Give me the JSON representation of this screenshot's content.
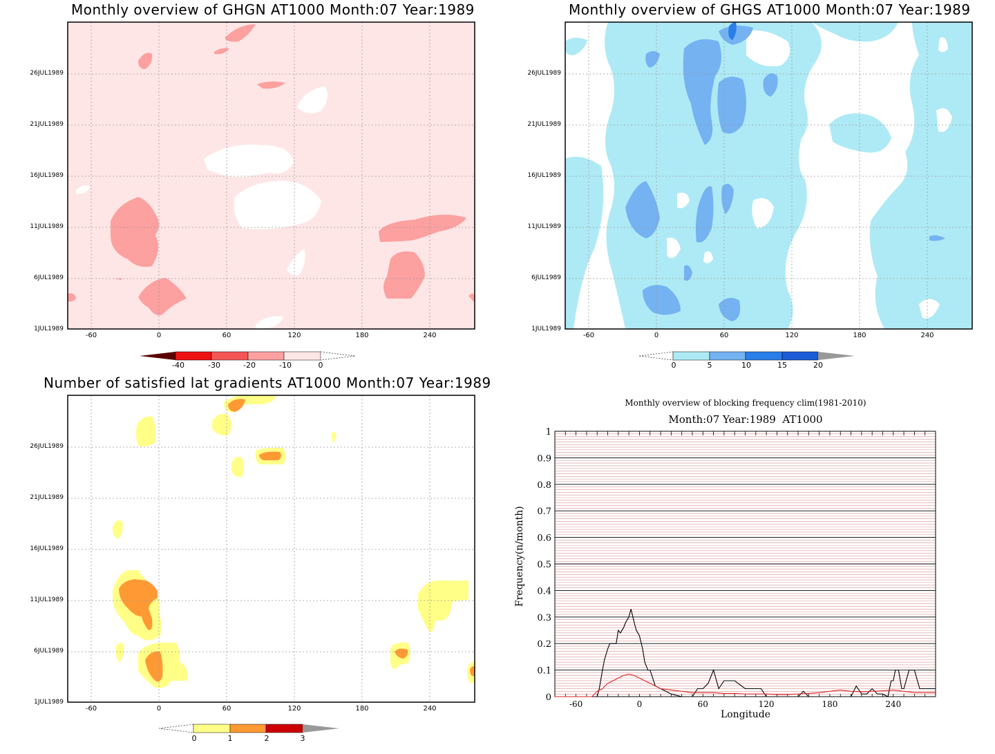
{
  "colors": {
    "ghgn": [
      "#f87d7d00",
      "#fca0a0",
      "#ffe6e6"
    ],
    "ghgs": [
      "#aeeaf5",
      "#74b2f2",
      "#2a7ee8",
      "#1c5cd6"
    ],
    "lat": [
      "#ffff88",
      "#ff9933",
      "#cc0000"
    ],
    "line_black": "#000000",
    "line_red": "#e02020",
    "grid_red": "#d89090"
  },
  "panels": [
    {
      "id": "ghgn",
      "title": "Monthly overview of GHGN AT1000 Month:07 Year:1989",
      "y_ticks": [
        "26JUL1989",
        "21JUL1989",
        "16JUL1989",
        "11JUL1989",
        "6JUL1989",
        "1JUL1989"
      ],
      "x_ticks": [
        "-60",
        "0",
        "60",
        "120",
        "180",
        "240"
      ],
      "colorbar": {
        "labels": [
          "-40",
          "-30",
          "-20",
          "-10",
          "0"
        ]
      }
    },
    {
      "id": "ghgs",
      "title": "Monthly overview of GHGS AT1000 Month:07 Year:1989",
      "y_ticks": [
        "26JUL1989",
        "21JUL1989",
        "16JUL1989",
        "11JUL1989",
        "6JUL1989",
        "1JUL1989"
      ],
      "x_ticks": [
        "-60",
        "0",
        "60",
        "120",
        "180",
        "240"
      ],
      "colorbar": {
        "labels": [
          "0",
          "5",
          "10",
          "15",
          "20"
        ]
      }
    },
    {
      "id": "lat",
      "title": "Number of satisfied lat gradients AT1000 Month:07 Year:1989",
      "y_ticks": [
        "26JUL1989",
        "21JUL1989",
        "16JUL1989",
        "11JUL1989",
        "6JUL1989",
        "1JUL1989"
      ],
      "x_ticks": [
        "-60",
        "0",
        "60",
        "120",
        "180",
        "240"
      ],
      "colorbar": {
        "labels": [
          "0",
          "1",
          "2",
          "3"
        ]
      }
    }
  ],
  "chart_data": [
    {
      "type": "heatmap",
      "title": "Monthly overview of GHGN AT1000 Month:07 Year:1989",
      "x_range": [
        -80,
        280
      ],
      "y_range": [
        "1JUL1989",
        "31JUL1989"
      ],
      "levels": [
        -40,
        -30,
        -20,
        -10,
        0
      ]
    },
    {
      "type": "heatmap",
      "title": "Monthly overview of GHGS AT1000 Month:07 Year:1989",
      "x_range": [
        -80,
        280
      ],
      "y_range": [
        "1JUL1989",
        "31JUL1989"
      ],
      "levels": [
        0,
        5,
        10,
        15,
        20
      ]
    },
    {
      "type": "heatmap",
      "title": "Number of satisfied lat gradients AT1000 Month:07 Year:1989",
      "x_range": [
        -80,
        280
      ],
      "y_range": [
        "1JUL1989",
        "31JUL1989"
      ],
      "levels": [
        0,
        1,
        2,
        3
      ]
    },
    {
      "type": "line",
      "title": "Monthly overview of blocking frequency clim(1981-2010)",
      "subtitle": "Month:07 Year:1989  AT1000",
      "xlabel": "Longitude",
      "ylabel": "Frequency(n/month)",
      "x_ticks": [
        "-60",
        "0",
        "60",
        "120",
        "180",
        "240"
      ],
      "y_ticks": [
        "0",
        "0.1",
        "0.2",
        "0.3",
        "0.4",
        "0.5",
        "0.6",
        "0.7",
        "0.8",
        "0.9",
        "1"
      ],
      "xlim": [
        -80,
        280
      ],
      "ylim": [
        0,
        1
      ],
      "grid": true,
      "series": [
        {
          "color": "#000000",
          "x": [
            -80,
            -60,
            -50,
            -45,
            -40,
            -38,
            -35,
            -33,
            -30,
            -28,
            -25,
            -22,
            -20,
            -18,
            -15,
            -13,
            -10,
            -8,
            -5,
            -3,
            0,
            3,
            5,
            8,
            10,
            15,
            20,
            25,
            30,
            40,
            50,
            55,
            60,
            65,
            70,
            75,
            80,
            85,
            90,
            100,
            110,
            115,
            120,
            125,
            130,
            135,
            140,
            150,
            155,
            160,
            170,
            180,
            190,
            200,
            205,
            210,
            212,
            215,
            220,
            225,
            230,
            235,
            238,
            240,
            242,
            245,
            248,
            250,
            255,
            260,
            265,
            270,
            280
          ],
          "y": [
            0,
            0,
            0,
            0,
            0,
            0.03,
            0.1,
            0.14,
            0.18,
            0.2,
            0.2,
            0.2,
            0.25,
            0.24,
            0.26,
            0.28,
            0.3,
            0.33,
            0.28,
            0.25,
            0.23,
            0.18,
            0.13,
            0.1,
            0.1,
            0.04,
            0.03,
            0.02,
            0.01,
            0,
            0,
            0.03,
            0.03,
            0.05,
            0.1,
            0.03,
            0.06,
            0.06,
            0.06,
            0.03,
            0.03,
            0.03,
            0,
            0,
            0,
            0,
            0,
            0,
            0.02,
            0,
            0,
            0,
            0,
            0,
            0.04,
            0.01,
            0.01,
            0.01,
            0.03,
            0.01,
            0.01,
            0,
            0.06,
            0.06,
            0.1,
            0.1,
            0.03,
            0.03,
            0.1,
            0.1,
            0.03,
            0.03,
            0.03
          ]
        },
        {
          "color": "#e02020",
          "x": [
            -80,
            -50,
            -45,
            -40,
            -35,
            -30,
            -25,
            -20,
            -15,
            -10,
            -5,
            0,
            5,
            10,
            15,
            20,
            30,
            40,
            50,
            60,
            70,
            80,
            90,
            100,
            110,
            120,
            130,
            140,
            150,
            160,
            170,
            180,
            190,
            200,
            210,
            220,
            230,
            240,
            250,
            260,
            270,
            280
          ],
          "y": [
            0,
            0,
            0,
            0.02,
            0.03,
            0.05,
            0.06,
            0.07,
            0.08,
            0.085,
            0.08,
            0.07,
            0.06,
            0.05,
            0.04,
            0.03,
            0.025,
            0.02,
            0.015,
            0.015,
            0.015,
            0.012,
            0.012,
            0.01,
            0.01,
            0.01,
            0.008,
            0.008,
            0.01,
            0.012,
            0.015,
            0.02,
            0.025,
            0.02,
            0.018,
            0.02,
            0.022,
            0.025,
            0.02,
            0.015,
            0.015,
            0.015
          ]
        }
      ]
    }
  ]
}
